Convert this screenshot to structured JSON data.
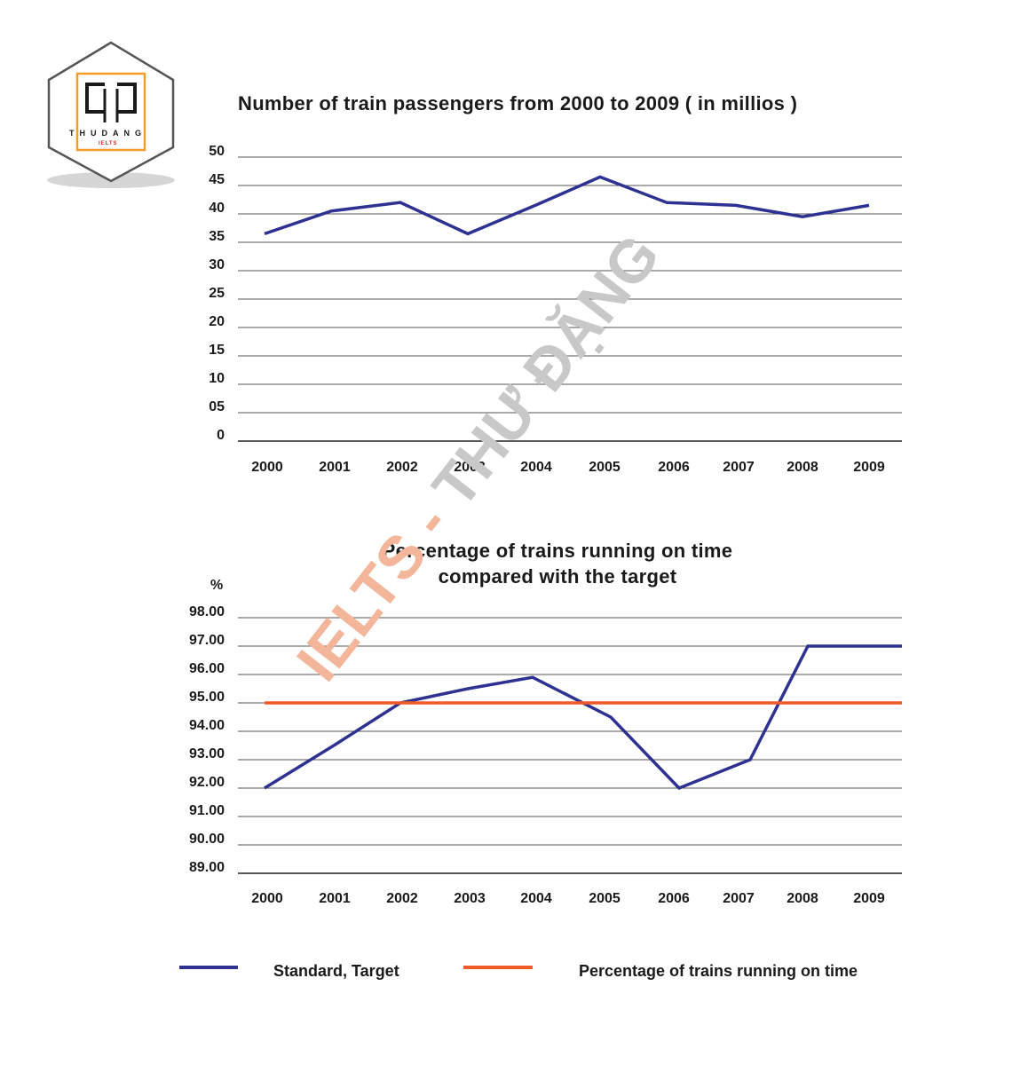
{
  "logo": {
    "name": "THUDANG",
    "sub": "IELTS"
  },
  "watermark": {
    "part1": "IELTS - ",
    "part2": "THƯ ĐẶNG",
    "color1": "#f4b69a",
    "color2": "#c8c8c8"
  },
  "colors": {
    "navy": "#2e3192",
    "orange": "#f05a28"
  },
  "chart_data": [
    {
      "type": "line",
      "title": "Number of train passengers from 2000 to 2009 ( in millios )",
      "categories": [
        "2000",
        "2001",
        "2002",
        "2003",
        "2004",
        "2005",
        "2006",
        "2007",
        "2008",
        "2009"
      ],
      "ylim": [
        0,
        50
      ],
      "yticks": [
        "0",
        "05",
        "10",
        "15",
        "20",
        "25",
        "30",
        "35",
        "40",
        "45",
        "50"
      ],
      "series": [
        {
          "values": [
            36.5,
            40.5,
            42,
            36.5,
            41.5,
            46.5,
            42,
            41.5,
            39.5,
            41.5
          ]
        }
      ]
    },
    {
      "type": "line",
      "title_lines": [
        "Percentage of trains running on time",
        "compared with the target"
      ],
      "ylabel": "%",
      "categories": [
        "2000",
        "2001",
        "2002",
        "2003",
        "2004",
        "2005",
        "2006",
        "2007",
        "2008",
        "2009"
      ],
      "ylim": [
        89,
        98
      ],
      "yticks": [
        "89.00",
        "90.00",
        "91.00",
        "92.00",
        "93.00",
        "94.00",
        "95.00",
        "96.00",
        "97.00",
        "98.00"
      ],
      "series": [
        {
          "name": "Standard, Target",
          "values": [
            92,
            93.5,
            95,
            95.5,
            95.9,
            94.5,
            92,
            93,
            97,
            97
          ]
        },
        {
          "name": "Percentage of trains running on time",
          "values": [
            95,
            95,
            95,
            95,
            95,
            95,
            95,
            95,
            95,
            95
          ]
        }
      ]
    }
  ]
}
